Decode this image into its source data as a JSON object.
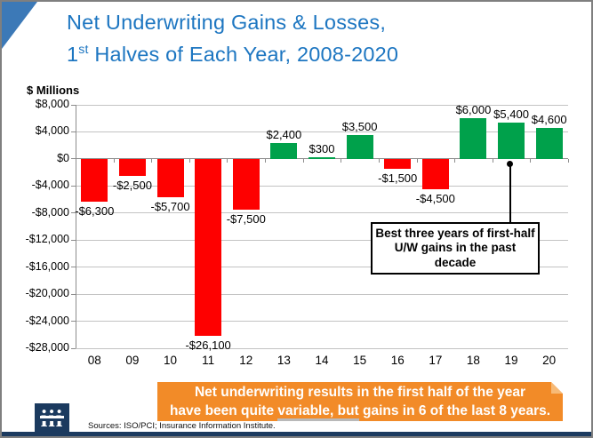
{
  "title": {
    "line1": "Net Underwriting Gains & Losses,",
    "line2_num": "1",
    "line2_sup": "st",
    "line2_rest": " Halves of Each Year, 2008-2020"
  },
  "chart_data": {
    "type": "bar",
    "title": "Net Underwriting Gains & Losses, 1st Halves of Each Year, 2008-2020",
    "ylabel": "$ Millions",
    "xlabel": "",
    "categories": [
      "08",
      "09",
      "10",
      "11",
      "12",
      "13",
      "14",
      "15",
      "16",
      "17",
      "18",
      "19",
      "20"
    ],
    "values": [
      -6300,
      -2500,
      -5700,
      -26100,
      -7500,
      2400,
      300,
      3500,
      -1500,
      -4500,
      6000,
      5400,
      4600
    ],
    "value_labels": [
      "-$6,300",
      "-$2,500",
      "-$5,700",
      "-$26,100",
      "-$7,500",
      "$2,400",
      "$300",
      "$3,500",
      "-$1,500",
      "-$4,500",
      "$6,000",
      "$5,400",
      "$4,600"
    ],
    "ylim": [
      -28000,
      8000
    ],
    "ytick_step": 4000,
    "ytick_labels": [
      "$8,000",
      "$4,000",
      "$0",
      "-$4,000",
      "-$8,000",
      "-$12,000",
      "-$16,000",
      "-$20,000",
      "-$24,000",
      "-$28,000"
    ],
    "grid": true,
    "legend": false,
    "positive_color": "#00a14b",
    "negative_color": "#fe0000"
  },
  "annotation": {
    "text": "Best three years of first-half U/W gains in the past decade",
    "points_to_year": "19"
  },
  "banner": {
    "line1": "Net underwriting results in the first half of the year",
    "line2_pre": "have been quite ",
    "line2_underlined": "variable, but",
    "line2_post": " gains in 6 of the last 8 years.",
    "bg_color": "#f28b28"
  },
  "footer": {
    "sources": "Sources: ISO/PCI;  Insurance Information Institute.",
    "logo": "iii"
  },
  "colors": {
    "title_blue": "#1d76c1",
    "corner_blue": "#3c79b7",
    "navy": "#1b3a5f",
    "border_gray": "#7f7f7f"
  }
}
